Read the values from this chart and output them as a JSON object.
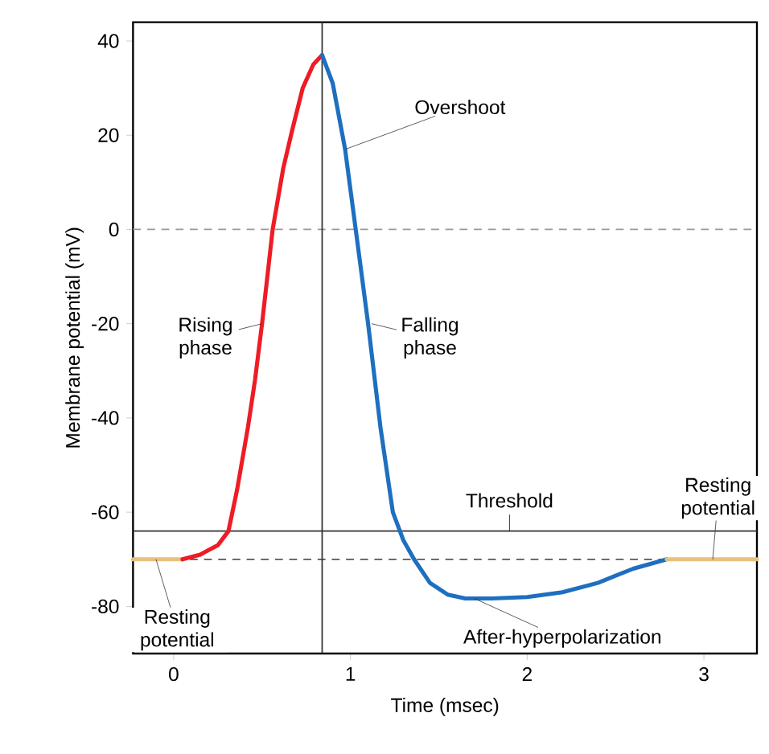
{
  "chart_data": {
    "type": "line",
    "xlabel": "Time (msec)",
    "ylabel": "Membrane potential (mV)",
    "xlim": [
      -0.23,
      3.3
    ],
    "ylim": [
      -90,
      44
    ],
    "xticks": [
      0,
      1,
      2,
      3
    ],
    "yticks": [
      -80,
      -60,
      -40,
      -20,
      0,
      20,
      40
    ],
    "series": [
      {
        "color": "#e8c07d",
        "x": [
          -0.23,
          0.05
        ],
        "values": [
          -70,
          -70
        ]
      },
      {
        "color": "#ee1c24",
        "x": [
          0.05,
          0.15,
          0.25,
          0.31,
          0.36,
          0.42,
          0.46,
          0.5,
          0.56,
          0.62,
          0.67,
          0.73,
          0.79,
          0.84
        ],
        "values": [
          -70,
          -69,
          -67,
          -64,
          -55,
          -42,
          -32,
          -20,
          0,
          13,
          21,
          30,
          35,
          37
        ]
      },
      {
        "color": "#1e6fc0",
        "x": [
          0.84,
          0.9,
          0.97,
          1.03,
          1.1,
          1.17,
          1.24,
          1.3,
          1.36,
          1.45,
          1.55,
          1.65,
          1.8,
          2.0,
          2.2,
          2.4,
          2.6,
          2.79
        ],
        "values": [
          37,
          31,
          17,
          0,
          -20,
          -42,
          -60,
          -66,
          -70,
          -75,
          -77.5,
          -78.3,
          -78.3,
          -78,
          -77,
          -75,
          -72,
          -70
        ]
      },
      {
        "color": "#e8c07d",
        "x": [
          2.79,
          3.3
        ],
        "values": [
          -70,
          -70
        ]
      }
    ],
    "ref_lines": [
      {
        "axis": "y",
        "value": 0,
        "color": "#999999",
        "line_style": "dashed"
      },
      {
        "axis": "y",
        "value": -70,
        "color": "#555555",
        "line_style": "dashed"
      },
      {
        "axis": "y",
        "value": -64,
        "color": "#333333",
        "line_style": "solid",
        "label": "Threshold"
      },
      {
        "axis": "x",
        "value": 0.84,
        "color": "#333333",
        "line_style": "solid"
      }
    ],
    "annotations": [
      {
        "text": "Overshoot",
        "x": 0.97,
        "y": 17
      },
      {
        "text": "Rising phase",
        "x": 0.5,
        "y": -20
      },
      {
        "text": "Falling phase",
        "x": 1.12,
        "y": -20
      },
      {
        "text": "Resting potential",
        "x": -0.1,
        "y": -70
      },
      {
        "text": "After-hyperpolarization",
        "x": 1.7,
        "y": -78.3
      },
      {
        "text": "Resting potential",
        "x": 3.05,
        "y": -70
      }
    ]
  }
}
